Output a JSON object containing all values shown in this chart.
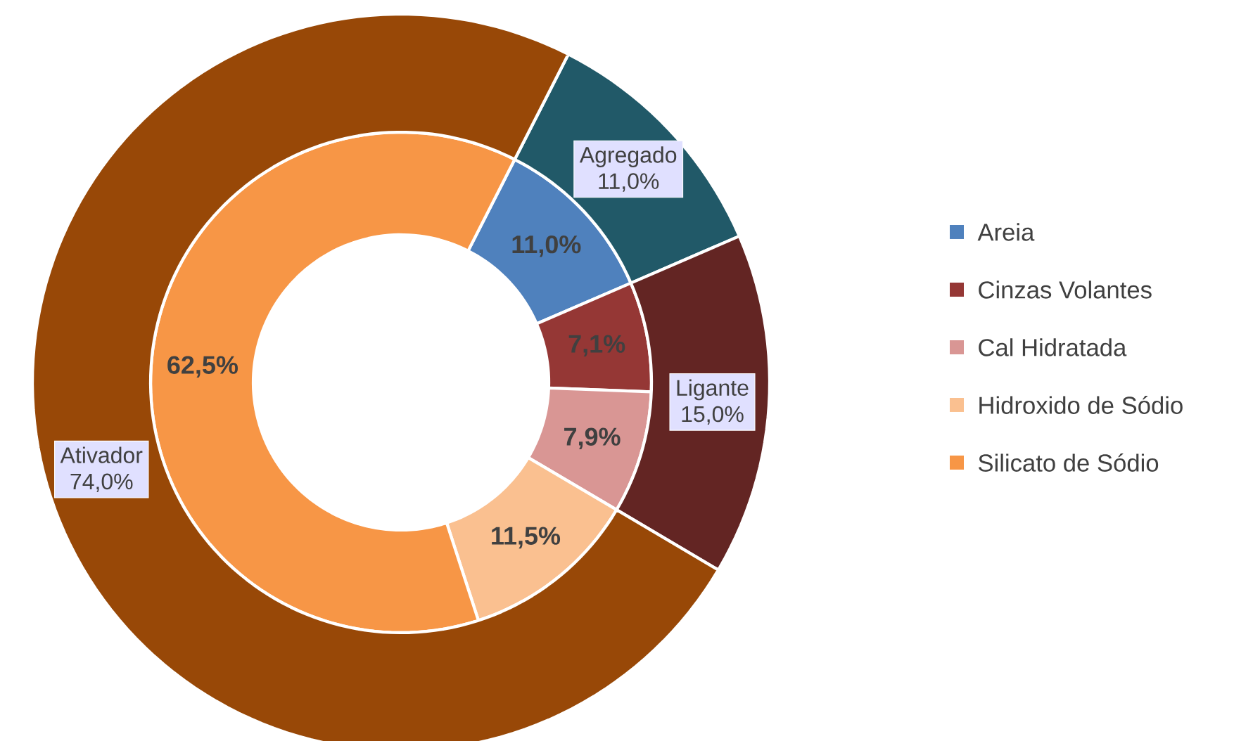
{
  "chart_data": [
    {
      "type": "donut",
      "categories": [
        "Areia",
        "Cinzas Volantes",
        "Cal Hidratada",
        "Hidroxido de Sódio",
        "Silicato de Sódio"
      ],
      "values": [
        11.0,
        7.1,
        7.9,
        11.5,
        62.5
      ],
      "colors": [
        "#4f81bd",
        "#953735",
        "#d99694",
        "#fac090",
        "#f79646"
      ],
      "value_labels": [
        "11,0%",
        "7,1%",
        "7,9%",
        "11,5%",
        "62,5%"
      ],
      "legend": "right"
    },
    {
      "type": "donut",
      "categories": [
        "Agregado",
        "Ligante",
        "Ativador"
      ],
      "values": [
        11.0,
        15.0,
        74.0
      ],
      "colors": [
        "#215968",
        "#632523",
        "#984807"
      ],
      "value_labels": [
        "11,0%",
        "15,0%",
        "74,0%"
      ]
    }
  ]
}
